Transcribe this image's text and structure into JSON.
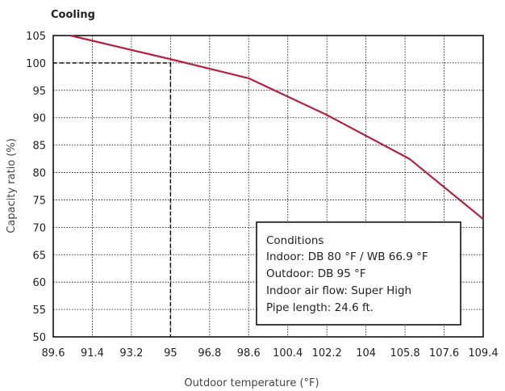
{
  "chart_data": {
    "type": "line",
    "title": "Cooling",
    "xlabel": "Outdoor temperature (°F)",
    "ylabel": "Capacity ratio (%)",
    "xlim": [
      89.6,
      109.4
    ],
    "ylim": [
      50,
      105
    ],
    "x_ticks": [
      "89.6",
      "91.4",
      "93.2",
      "95",
      "96.8",
      "98.6",
      "100.4",
      "102.2",
      "104",
      "105.8",
      "107.6",
      "109.4"
    ],
    "y_ticks": [
      "50",
      "55",
      "60",
      "65",
      "70",
      "75",
      "80",
      "85",
      "90",
      "95",
      "100",
      "105"
    ],
    "grid": true,
    "series": [
      {
        "x": [
          90.4,
          95.2,
          98.6,
          102.2,
          106.0,
          109.4
        ],
        "y": [
          105.0,
          100.5,
          97.2,
          90.5,
          82.5,
          71.5
        ]
      }
    ],
    "reference": {
      "x": 95,
      "y": 100
    },
    "conditions": [
      "Conditions",
      "Indoor: DB 80 °F  /  WB 66.9 °F",
      "Outdoor: DB 95 °F",
      "Indoor air flow: Super High",
      "Pipe length: 24.6 ft."
    ],
    "colors": {
      "line": "#b5203e",
      "frame": "#000000",
      "grid": "#000000"
    }
  }
}
